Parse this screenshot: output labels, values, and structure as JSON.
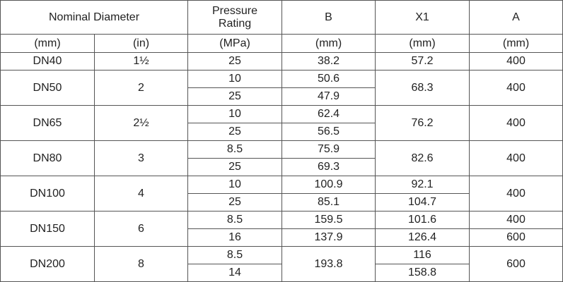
{
  "table": {
    "header": [
      "Nominal Diameter",
      "Pressure Rating",
      "B",
      "X1",
      "A"
    ],
    "units": [
      "(mm)",
      "(in)",
      "(MPa)",
      "(mm)",
      "(mm)",
      "(mm)"
    ],
    "rows": [
      [
        "DN40",
        "1½",
        "25",
        "38.2",
        "57.2",
        "400"
      ],
      [
        "DN50",
        "2",
        "10",
        "50.6",
        "68.3",
        "400"
      ],
      [
        "25",
        "47.9"
      ],
      [
        "DN65",
        "2½",
        "10",
        "62.4",
        "76.2",
        "400"
      ],
      [
        "25",
        "56.5"
      ],
      [
        "DN80",
        "3",
        "8.5",
        "75.9",
        "82.6",
        "400"
      ],
      [
        "25",
        "69.3"
      ],
      [
        "DN100",
        "4",
        "10",
        "100.9",
        "92.1",
        "400"
      ],
      [
        "25",
        "85.1",
        "104.7"
      ],
      [
        "DN150",
        "6",
        "8.5",
        "159.5",
        "101.6",
        "400"
      ],
      [
        "16",
        "137.9",
        "126.4",
        "600"
      ],
      [
        "DN200",
        "8",
        "8.5",
        "193.8",
        "116",
        "600"
      ],
      [
        "14",
        "158.8"
      ]
    ]
  }
}
